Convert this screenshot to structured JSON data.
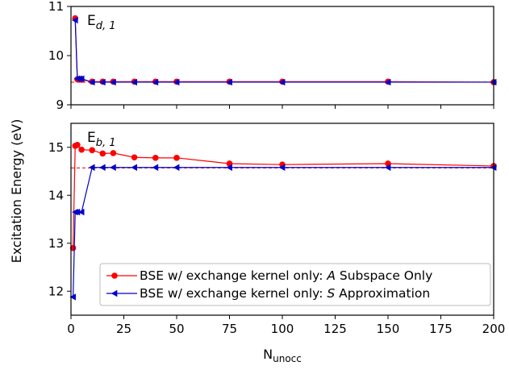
{
  "chart_data": {
    "type": "line",
    "xlabel": "N",
    "xlabel_sub": "unocc",
    "ylabel": "Excitation Energy (eV)",
    "xlim": [
      0,
      200
    ],
    "xticks": [
      0,
      25,
      50,
      75,
      100,
      125,
      150,
      175,
      200
    ],
    "colors": {
      "a_subspace": "#ff0000",
      "s_approx": "#0000cc",
      "reference": "#e41a1c"
    },
    "legend": {
      "placement": "lower-right of bottom panel",
      "entries": [
        {
          "series": "a_subspace",
          "prefix": "BSE w/ exchange kernel only: ",
          "italic": "A",
          "suffix": " Subspace Only"
        },
        {
          "series": "s_approx",
          "prefix": "BSE w/ exchange kernel only: ",
          "italic": "S",
          "suffix": " Approximation"
        }
      ]
    },
    "panels": [
      {
        "annotation_main": "E",
        "annotation_sub": "d, 1",
        "ylim": [
          9,
          11
        ],
        "yticks": [
          9,
          10,
          11
        ],
        "reference": 9.46,
        "series": [
          {
            "key": "a_subspace",
            "marker": "circle",
            "x": [
              2,
              3,
              4,
              5,
              10,
              15,
              20,
              30,
              40,
              50,
              75,
              100,
              150,
              200
            ],
            "y": [
              10.76,
              9.52,
              9.52,
              9.51,
              9.47,
              9.47,
              9.47,
              9.47,
              9.47,
              9.47,
              9.47,
              9.47,
              9.47,
              9.46
            ]
          },
          {
            "key": "s_approx",
            "marker": "triangle-left",
            "x": [
              2,
              3,
              4,
              5,
              10,
              15,
              20,
              30,
              40,
              50,
              75,
              100,
              150,
              200
            ],
            "y": [
              10.72,
              9.53,
              9.53,
              9.53,
              9.46,
              9.46,
              9.46,
              9.46,
              9.46,
              9.46,
              9.46,
              9.46,
              9.46,
              9.46
            ]
          }
        ]
      },
      {
        "annotation_main": "E",
        "annotation_sub": "b, 1",
        "ylim": [
          11.5,
          15.5
        ],
        "yticks": [
          12,
          13,
          14,
          15
        ],
        "reference": 14.57,
        "series": [
          {
            "key": "a_subspace",
            "marker": "circle",
            "x": [
              1,
              2,
              3,
              5,
              10,
              15,
              20,
              30,
              40,
              50,
              75,
              100,
              150,
              200
            ],
            "y": [
              12.9,
              15.03,
              15.05,
              14.95,
              14.94,
              14.87,
              14.88,
              14.79,
              14.78,
              14.78,
              14.66,
              14.64,
              14.66,
              14.61
            ]
          },
          {
            "key": "s_approx",
            "marker": "triangle-left",
            "x": [
              1,
              2,
              3,
              5,
              10,
              15,
              20,
              30,
              40,
              50,
              75,
              100,
              150,
              200
            ],
            "y": [
              11.88,
              13.65,
              13.65,
              13.65,
              14.58,
              14.58,
              14.58,
              14.58,
              14.58,
              14.58,
              14.58,
              14.58,
              14.58,
              14.58
            ]
          }
        ]
      }
    ]
  }
}
